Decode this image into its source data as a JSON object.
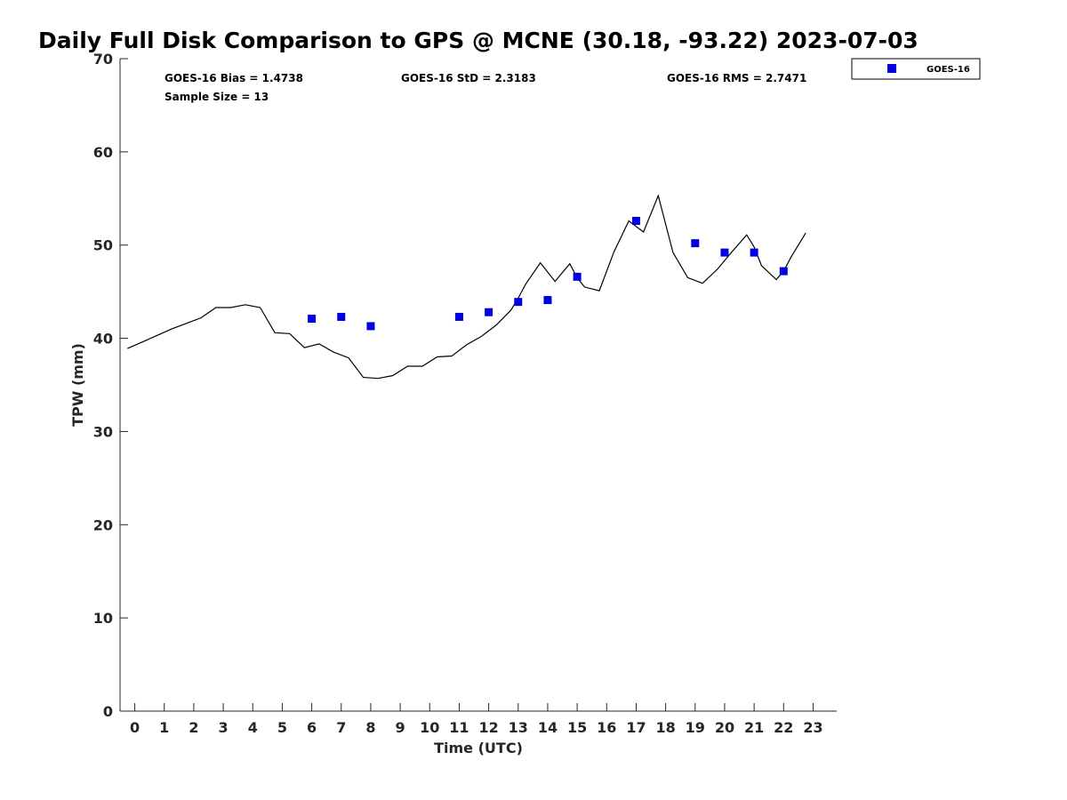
{
  "chart_data": {
    "type": "scatter",
    "title": "Daily Full Disk Comparison to GPS @ MCNE (30.18, -93.22) 2023-07-03",
    "xlabel": "Time (UTC)",
    "ylabel": "TPW (mm)",
    "xlim": [
      -0.5,
      23.8
    ],
    "ylim": [
      0,
      70
    ],
    "x_ticks": [
      0,
      1,
      2,
      3,
      4,
      5,
      6,
      7,
      8,
      9,
      10,
      11,
      12,
      13,
      14,
      15,
      16,
      17,
      18,
      19,
      20,
      21,
      22,
      23
    ],
    "x_tick_labels": [
      "0",
      "1",
      "2",
      "3",
      "4",
      "5",
      "6",
      "7",
      "8",
      "9",
      "10",
      "11",
      "12",
      "13",
      "14",
      "15",
      "16",
      "17",
      "18",
      "19",
      "20",
      "21",
      "22",
      "23"
    ],
    "y_ticks": [
      0,
      10,
      20,
      30,
      40,
      50,
      60,
      70
    ],
    "y_tick_labels": [
      "0",
      "10",
      "20",
      "30",
      "40",
      "50",
      "60",
      "70"
    ],
    "grid": false,
    "legend_position": "top-right (outside)",
    "stats": {
      "bias": "GOES-16 Bias = 1.4738",
      "std": "GOES-16 StD = 2.3183",
      "rms": "GOES-16 RMS = 2.7471",
      "sample_size": "Sample Size = 13"
    },
    "series": [
      {
        "name": "GOES-16",
        "kind": "scatter",
        "marker": "square",
        "color": "#0000e0",
        "x": [
          6,
          7,
          8,
          11,
          12,
          13,
          14,
          15,
          17,
          19,
          20,
          21,
          22
        ],
        "y": [
          42.1,
          42.3,
          41.3,
          42.3,
          42.8,
          43.9,
          44.1,
          46.6,
          52.6,
          50.2,
          49.2,
          49.2,
          47.2
        ]
      },
      {
        "kind": "line",
        "color": "#000000",
        "x": [
          -0.25,
          0.25,
          0.75,
          1.25,
          1.75,
          2.25,
          2.75,
          3.25,
          3.75,
          4.25,
          4.75,
          5.25,
          5.75,
          6.25,
          6.75,
          7.25,
          7.75,
          8.25,
          8.75,
          9.25,
          9.75,
          10.25,
          10.75,
          11.25,
          11.75,
          12.25,
          12.75,
          13.0,
          13.25,
          13.75,
          14.25,
          14.75,
          15.0,
          15.25,
          15.75,
          16.25,
          16.75,
          17.25,
          17.75,
          18.25,
          18.75,
          19.25,
          19.75,
          20.25,
          20.75,
          21.0,
          21.25,
          21.75,
          22.0,
          22.25,
          22.75
        ],
        "y": [
          38.9,
          39.6,
          40.3,
          41.0,
          41.6,
          42.2,
          43.3,
          43.3,
          43.6,
          43.3,
          40.6,
          40.5,
          39.0,
          39.4,
          38.5,
          37.9,
          35.8,
          35.7,
          36.0,
          37.0,
          37.0,
          38.0,
          38.1,
          39.3,
          40.2,
          41.4,
          43.0,
          44.3,
          45.8,
          48.1,
          46.1,
          48.0,
          46.5,
          45.5,
          45.1,
          49.3,
          52.6,
          51.4,
          55.3,
          49.2,
          46.5,
          45.9,
          47.4,
          49.3,
          51.1,
          49.8,
          47.8,
          46.3,
          47.2,
          48.7,
          51.3
        ]
      }
    ]
  }
}
